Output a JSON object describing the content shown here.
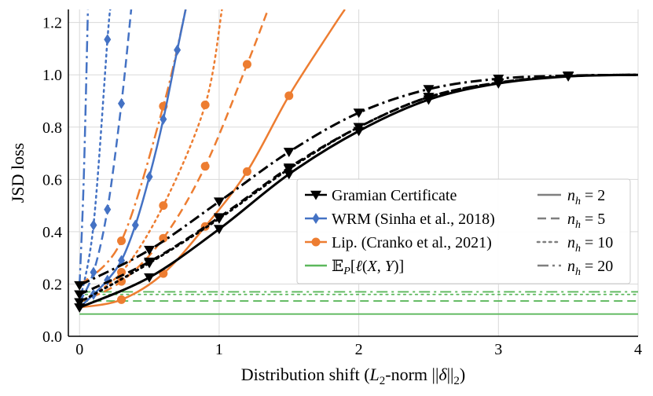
{
  "chart_data": {
    "type": "line",
    "title": "",
    "xlabel": "Distribution shift (L2-norm ||δ||2)",
    "ylabel": "JSD loss",
    "xlim": [
      -0.08,
      4.0
    ],
    "ylim": [
      0.0,
      1.25
    ],
    "xticks": [
      "0",
      "1",
      "2",
      "3",
      "4"
    ],
    "yticks": [
      "0.0",
      "0.2",
      "0.4",
      "0.6",
      "0.8",
      "1.0",
      "1.2"
    ],
    "grid": true,
    "legend_position": "center-right",
    "colors": {
      "gramian": "#000000",
      "wrm": "#4472c4",
      "lip": "#ed7d31",
      "expected": "#5cb85c",
      "nh_legend": "#7f7f7f"
    },
    "methods": [
      {
        "key": "gramian",
        "label": "Gramian Certificate",
        "marker": "triangle-down"
      },
      {
        "key": "wrm",
        "label": "WRM (Sinha et al., 2018)",
        "marker": "diamond"
      },
      {
        "key": "lip",
        "label": "Lip. (Cranko et al., 2021)",
        "marker": "circle"
      },
      {
        "key": "expected",
        "label": "𝔼P[ℓ(X, Y)]",
        "marker": "none"
      }
    ],
    "nh_legend": [
      {
        "label": "n_h = 2",
        "dash": "solid"
      },
      {
        "label": "n_h = 5",
        "dash": "dashed"
      },
      {
        "label": "n_h = 10",
        "dash": "dotted"
      },
      {
        "label": "n_h = 20",
        "dash": "dashdot"
      }
    ],
    "series": [
      {
        "method": "gramian",
        "nh": 2,
        "dash": "solid",
        "x": [
          0,
          0.5,
          1.0,
          1.5,
          2.0,
          2.5,
          3.0,
          3.5,
          4.0
        ],
        "y": [
          0.11,
          0.225,
          0.41,
          0.62,
          0.785,
          0.905,
          0.967,
          0.994,
          1.0
        ],
        "markers_x": [
          0,
          0.5,
          1.0,
          1.5,
          2.0,
          2.5,
          3.0,
          3.5
        ]
      },
      {
        "method": "gramian",
        "nh": 5,
        "dash": "dashed",
        "x": [
          0,
          0.5,
          1.0,
          1.5,
          2.0,
          2.5,
          3.0,
          3.5,
          4.0
        ],
        "y": [
          0.16,
          0.285,
          0.455,
          0.645,
          0.8,
          0.915,
          0.97,
          0.995,
          1.0
        ],
        "markers_x": [
          0,
          0.5,
          1.0,
          1.5,
          2.0,
          2.5,
          3.0,
          3.5
        ]
      },
      {
        "method": "gramian",
        "nh": 10,
        "dash": "dotted",
        "x": [
          0,
          0.5,
          1.0,
          1.5,
          2.0,
          2.5,
          3.0,
          3.5,
          4.0
        ],
        "y": [
          0.13,
          0.28,
          0.45,
          0.64,
          0.8,
          0.915,
          0.97,
          0.995,
          1.0
        ],
        "markers_x": [
          0,
          0.5,
          1.0,
          1.5,
          2.0,
          2.5,
          3.0,
          3.5
        ]
      },
      {
        "method": "gramian",
        "nh": 20,
        "dash": "dashdot",
        "x": [
          0,
          0.5,
          1.0,
          1.5,
          2.0,
          2.5,
          3.0,
          3.5,
          4.0
        ],
        "y": [
          0.195,
          0.33,
          0.515,
          0.705,
          0.855,
          0.945,
          0.985,
          0.997,
          1.0
        ],
        "markers_x": [
          0,
          0.5,
          1.0,
          1.5,
          2.0,
          2.5,
          3.0,
          3.5
        ]
      },
      {
        "method": "wrm",
        "nh": 2,
        "dash": "solid",
        "x": [
          0,
          0.1,
          0.2,
          0.3,
          0.4,
          0.5,
          0.6,
          0.7,
          0.76
        ],
        "y": [
          0.11,
          0.16,
          0.215,
          0.29,
          0.425,
          0.61,
          0.83,
          1.095,
          1.25
        ],
        "markers_x": [
          0.1,
          0.2,
          0.3,
          0.4,
          0.5,
          0.6,
          0.7
        ]
      },
      {
        "method": "wrm",
        "nh": 5,
        "dash": "dashed",
        "x": [
          0,
          0.1,
          0.2,
          0.3,
          0.37
        ],
        "y": [
          0.13,
          0.245,
          0.485,
          0.89,
          1.25
        ],
        "markers_x": [
          0.1,
          0.2,
          0.3
        ]
      },
      {
        "method": "wrm",
        "nh": 10,
        "dash": "dotted",
        "x": [
          0,
          0.1,
          0.2,
          0.22
        ],
        "y": [
          0.13,
          0.425,
          1.135,
          1.25
        ],
        "markers_x": [
          0.1,
          0.2
        ]
      },
      {
        "method": "wrm",
        "nh": 20,
        "dash": "dashdot",
        "x": [
          0,
          0.03,
          0.06
        ],
        "y": [
          0.195,
          0.6,
          1.25
        ],
        "markers_x": []
      },
      {
        "method": "lip",
        "nh": 2,
        "dash": "solid",
        "x": [
          0,
          0.3,
          0.6,
          0.9,
          1.2,
          1.5,
          1.8,
          1.9
        ],
        "y": [
          0.11,
          0.14,
          0.24,
          0.42,
          0.63,
          0.92,
          1.17,
          1.25
        ],
        "markers_x": [
          0.3,
          0.6,
          0.9,
          1.2,
          1.5
        ]
      },
      {
        "method": "lip",
        "nh": 5,
        "dash": "dashed",
        "x": [
          0,
          0.3,
          0.6,
          0.9,
          1.2,
          1.35
        ],
        "y": [
          0.13,
          0.21,
          0.375,
          0.65,
          1.04,
          1.25
        ],
        "markers_x": [
          0.3,
          0.6,
          0.9,
          1.2
        ]
      },
      {
        "method": "lip",
        "nh": 10,
        "dash": "dotted",
        "x": [
          0,
          0.3,
          0.6,
          0.9,
          1.02
        ],
        "y": [
          0.13,
          0.245,
          0.5,
          0.885,
          1.25
        ],
        "markers_x": [
          0.3,
          0.6,
          0.9
        ]
      },
      {
        "method": "lip",
        "nh": 20,
        "dash": "dashdot",
        "x": [
          0,
          0.3,
          0.6,
          0.76
        ],
        "y": [
          0.195,
          0.365,
          0.88,
          1.25
        ],
        "markers_x": [
          0.3,
          0.6
        ]
      },
      {
        "method": "expected",
        "nh": 2,
        "dash": "solid",
        "x": [
          0,
          4.0
        ],
        "y": [
          0.085,
          0.085
        ],
        "markers_x": []
      },
      {
        "method": "expected",
        "nh": 5,
        "dash": "dashed",
        "x": [
          0,
          4.0
        ],
        "y": [
          0.135,
          0.135
        ],
        "markers_x": []
      },
      {
        "method": "expected",
        "nh": 10,
        "dash": "dotted",
        "x": [
          0,
          4.0
        ],
        "y": [
          0.16,
          0.16
        ],
        "markers_x": []
      },
      {
        "method": "expected",
        "nh": 20,
        "dash": "dashdot",
        "x": [
          0,
          4.0
        ],
        "y": [
          0.17,
          0.17
        ],
        "markers_x": []
      }
    ]
  }
}
